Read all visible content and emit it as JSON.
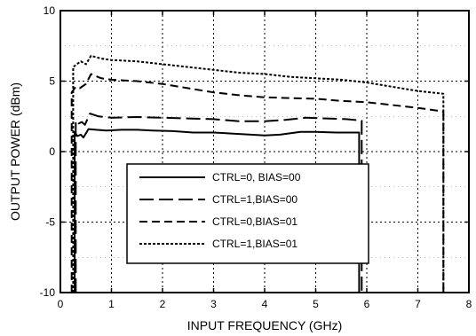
{
  "chart_data": {
    "type": "line",
    "title": "",
    "xlabel": "INPUT FREQUENCY (GHz)",
    "ylabel": "OUTPUT POWER (dBm)",
    "xlim": [
      0,
      8
    ],
    "ylim": [
      -10,
      10
    ],
    "x_ticks": [
      0,
      1,
      2,
      3,
      4,
      5,
      6,
      7,
      8
    ],
    "y_ticks": [
      -10,
      -5,
      0,
      5,
      10
    ],
    "x_tick_labels": [
      "0",
      "1",
      "2",
      "3",
      "4",
      "5",
      "6",
      "7",
      "8"
    ],
    "y_tick_labels": [
      "-10",
      "-5",
      "0",
      "5",
      "10"
    ],
    "grid": true,
    "legend_position": "center-left",
    "series": [
      {
        "name": "CTRL=0, BIAS=00",
        "style": "solid",
        "points": [
          [
            0.28,
            -10
          ],
          [
            0.28,
            1.4
          ],
          [
            0.33,
            1.1
          ],
          [
            0.4,
            1.2
          ],
          [
            0.45,
            1.0
          ],
          [
            0.55,
            1.6
          ],
          [
            0.7,
            1.55
          ],
          [
            0.9,
            1.5
          ],
          [
            1.2,
            1.55
          ],
          [
            1.5,
            1.55
          ],
          [
            1.8,
            1.5
          ],
          [
            2.2,
            1.45
          ],
          [
            2.6,
            1.35
          ],
          [
            3.0,
            1.35
          ],
          [
            3.5,
            1.25
          ],
          [
            4.0,
            1.15
          ],
          [
            4.3,
            1.2
          ],
          [
            4.7,
            1.4
          ],
          [
            5.0,
            1.4
          ],
          [
            5.4,
            1.35
          ],
          [
            5.85,
            1.35
          ],
          [
            5.85,
            -10
          ]
        ]
      },
      {
        "name": "CTRL=1,BIAS=00",
        "style": "long-dash",
        "points": [
          [
            0.3,
            -10
          ],
          [
            0.3,
            2.2
          ],
          [
            0.36,
            2.0
          ],
          [
            0.42,
            2.1
          ],
          [
            0.48,
            1.9
          ],
          [
            0.58,
            2.7
          ],
          [
            0.75,
            2.5
          ],
          [
            1.0,
            2.4
          ],
          [
            1.5,
            2.45
          ],
          [
            2.0,
            2.4
          ],
          [
            2.5,
            2.35
          ],
          [
            3.0,
            2.3
          ],
          [
            3.5,
            2.15
          ],
          [
            4.0,
            2.15
          ],
          [
            4.4,
            2.25
          ],
          [
            4.8,
            2.4
          ],
          [
            5.2,
            2.35
          ],
          [
            5.6,
            2.3
          ],
          [
            5.9,
            2.2
          ],
          [
            5.9,
            -10
          ]
        ]
      },
      {
        "name": "CTRL=0,BIAS=01",
        "style": "dash",
        "points": [
          [
            0.22,
            -10
          ],
          [
            0.22,
            4.2
          ],
          [
            0.3,
            4.6
          ],
          [
            0.38,
            4.5
          ],
          [
            0.5,
            4.8
          ],
          [
            0.6,
            5.5
          ],
          [
            0.8,
            5.2
          ],
          [
            1.0,
            5.1
          ],
          [
            1.5,
            5.0
          ],
          [
            2.0,
            4.8
          ],
          [
            2.5,
            4.5
          ],
          [
            3.0,
            4.2
          ],
          [
            3.5,
            4.0
          ],
          [
            4.0,
            3.85
          ],
          [
            4.5,
            3.8
          ],
          [
            5.0,
            3.75
          ],
          [
            5.5,
            3.6
          ],
          [
            6.0,
            3.5
          ],
          [
            6.5,
            3.3
          ],
          [
            7.0,
            3.1
          ],
          [
            7.4,
            2.9
          ],
          [
            7.5,
            2.8
          ],
          [
            7.5,
            -10
          ]
        ]
      },
      {
        "name": "CTRL=1,BIAS=01",
        "style": "dotted",
        "points": [
          [
            0.25,
            -10
          ],
          [
            0.25,
            6.0
          ],
          [
            0.32,
            6.2
          ],
          [
            0.4,
            6.4
          ],
          [
            0.5,
            6.2
          ],
          [
            0.6,
            6.8
          ],
          [
            0.8,
            6.6
          ],
          [
            1.0,
            6.5
          ],
          [
            1.5,
            6.4
          ],
          [
            2.0,
            6.2
          ],
          [
            2.5,
            6.0
          ],
          [
            3.0,
            5.8
          ],
          [
            3.5,
            5.6
          ],
          [
            4.0,
            5.5
          ],
          [
            4.5,
            5.3
          ],
          [
            5.0,
            5.2
          ],
          [
            5.5,
            5.1
          ],
          [
            6.0,
            4.9
          ],
          [
            6.5,
            4.6
          ],
          [
            7.0,
            4.3
          ],
          [
            7.5,
            4.1
          ],
          [
            7.5,
            -10
          ]
        ]
      }
    ]
  }
}
